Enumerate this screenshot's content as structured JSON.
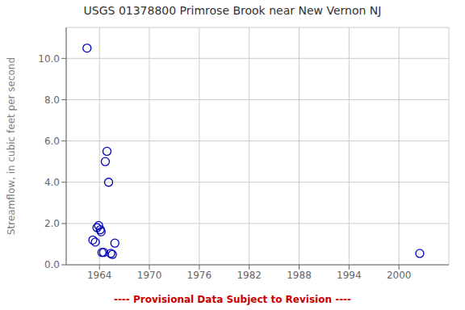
{
  "chart_data": {
    "type": "scatter",
    "title": "USGS 01378800 Primrose Brook near New Vernon NJ",
    "ylabel": "Streamflow, in cubic feet per second",
    "x": [
      1962.5,
      1963.2,
      1963.5,
      1963.7,
      1963.9,
      1964.1,
      1964.2,
      1964.3,
      1964.5,
      1964.7,
      1964.9,
      1965.1,
      1965.35,
      1965.55,
      1965.85,
      2002.5
    ],
    "values": [
      10.5,
      1.2,
      1.1,
      1.8,
      1.9,
      1.7,
      1.6,
      0.6,
      0.6,
      5.0,
      5.5,
      4.0,
      0.55,
      0.5,
      1.05,
      0.55
    ],
    "color": "#0000bb",
    "marker": "open_circle",
    "xlim": [
      1960,
      2006
    ],
    "ylim": [
      0.0,
      11.5
    ],
    "xticks": [
      1964,
      1970,
      1976,
      1982,
      1988,
      1994,
      2000
    ],
    "yticks": [
      {
        "value": 0,
        "label": "0.0"
      },
      {
        "value": 2,
        "label": "2.0"
      },
      {
        "value": 4,
        "label": "4.0"
      },
      {
        "value": 6,
        "label": "6.0"
      },
      {
        "value": 8,
        "label": "8.0"
      },
      {
        "value": 10,
        "label": "10.0"
      }
    ],
    "grid": true,
    "annotations": [
      {
        "text": "---- Provisional Data Subject to Revision ----",
        "color": "#cc0000"
      }
    ]
  }
}
